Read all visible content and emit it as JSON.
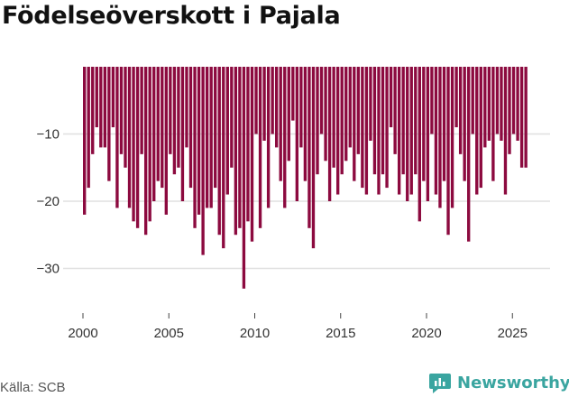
{
  "title": "Födelseöverskott i Pajala",
  "source": "Källa: SCB",
  "brand": {
    "name": "Newsworthy",
    "icon": "newsworthy-logo-icon"
  },
  "colors": {
    "bar": "#8c0a3f",
    "grid": "#e0e0e0",
    "brand": "#3aa5a0"
  },
  "chart_data": {
    "type": "bar",
    "title": "Födelseöverskott i Pajala",
    "xlabel": "",
    "ylabel": "",
    "frequency": "monthly",
    "x_start": 2000.0,
    "x_step": 0.25,
    "values": [
      -22,
      -18,
      -13,
      -9,
      -12,
      -12,
      -17,
      -9,
      -21,
      -13,
      -15,
      -21,
      -23,
      -24,
      -13,
      -25,
      -23,
      -20,
      -17,
      -18,
      -22,
      -13,
      -16,
      -15,
      -20,
      -12,
      -18,
      -24,
      -22,
      -28,
      -21,
      -21,
      -18,
      -25,
      -27,
      -19,
      -15,
      -25,
      -24,
      -33,
      -23,
      -26,
      -10,
      -24,
      -11,
      -21,
      -10,
      -12,
      -17,
      -21,
      -14,
      -8,
      -20,
      -12,
      -17,
      -24,
      -27,
      -16,
      -10,
      -14,
      -20,
      -15,
      -19,
      -16,
      -14,
      -12,
      -17,
      -13,
      -18,
      -19,
      -11,
      -16,
      -19,
      -16,
      -18,
      -9,
      -13,
      -19,
      -16,
      -20,
      -19,
      -16,
      -23,
      -17,
      -20,
      -10,
      -19,
      -21,
      -17,
      -25,
      -21,
      -9,
      -13,
      -17,
      -26,
      -10,
      -19,
      -18,
      -12,
      -11,
      -17,
      -10,
      -11,
      -19,
      -13,
      -10,
      -11,
      -15,
      -15
    ],
    "yticks": [
      -10,
      -20,
      -30
    ],
    "ytick_labels": [
      "−10",
      "−20",
      "−30"
    ],
    "xticks": [
      2000,
      2005,
      2010,
      2015,
      2020,
      2025
    ],
    "xtick_labels": [
      "2000",
      "2005",
      "2010",
      "2015",
      "2020",
      "2025"
    ],
    "ylim": [
      -36,
      0
    ],
    "xlim": [
      1999.0,
      2026.5
    ]
  }
}
